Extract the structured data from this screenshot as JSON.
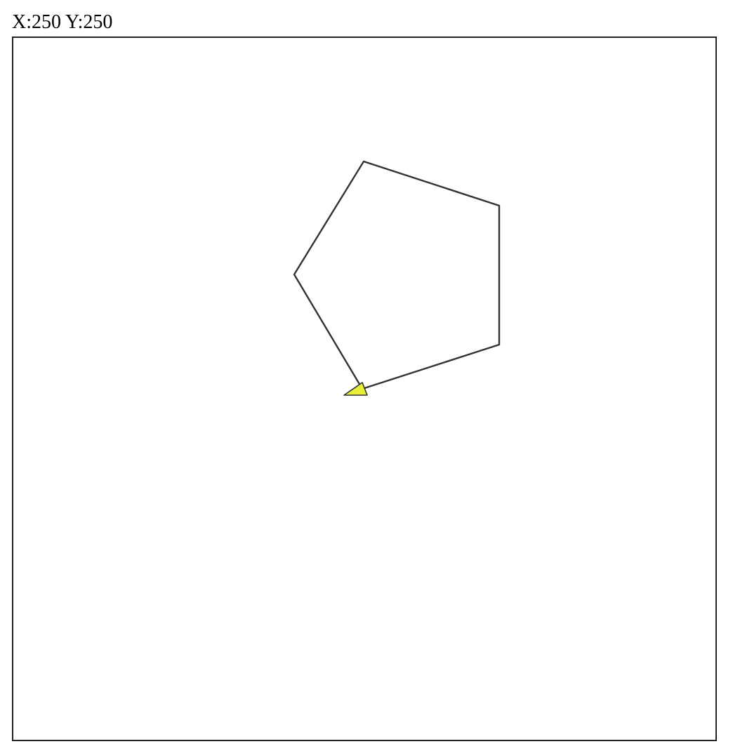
{
  "readout": {
    "x_label": "X:",
    "x_value": "250",
    "y_label": "Y:",
    "y_value": "250"
  },
  "drawing": {
    "shape": "pentagon",
    "sides": 5,
    "line_color": "#333333",
    "turtle_color": "#e8ef3a",
    "turtle_outline": "#333333"
  },
  "icons": {
    "turtle": "turtle-cursor-icon"
  }
}
